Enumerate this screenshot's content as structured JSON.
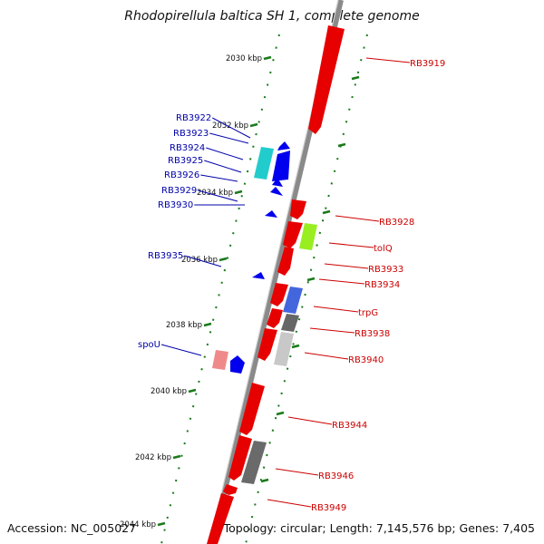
{
  "title": "Rhodopirellula baltica SH 1, complete genome",
  "footer": {
    "accession": "Accession: NC_005027",
    "summary": "Topology: circular; Length: 7,145,576 bp; Genes: 7,405"
  },
  "colors": {
    "forward_label": "#cc0000",
    "reverse_label": "#0000aa",
    "backbone": "#8a8a8a",
    "tick_marks": "#1a7a1a"
  },
  "ticks": [
    {
      "label": "2030 kbp"
    },
    {
      "label": "2032 kbp"
    },
    {
      "label": "2034 kbp"
    },
    {
      "label": "2036 kbp"
    },
    {
      "label": "2038 kbp"
    },
    {
      "label": "2040 kbp"
    },
    {
      "label": "2042 kbp"
    },
    {
      "label": "2044 kbp"
    }
  ],
  "forward_labels": [
    "RB3919",
    "RB3928",
    "tolQ",
    "RB3933",
    "RB3934",
    "trpG",
    "RB3938",
    "RB3940",
    "RB3944",
    "RB3946",
    "RB3949"
  ],
  "reverse_labels": [
    "RB3922",
    "RB3923",
    "RB3924",
    "RB3925",
    "RB3926",
    "RB3929",
    "RB3930",
    "RB3935",
    "spoU"
  ]
}
